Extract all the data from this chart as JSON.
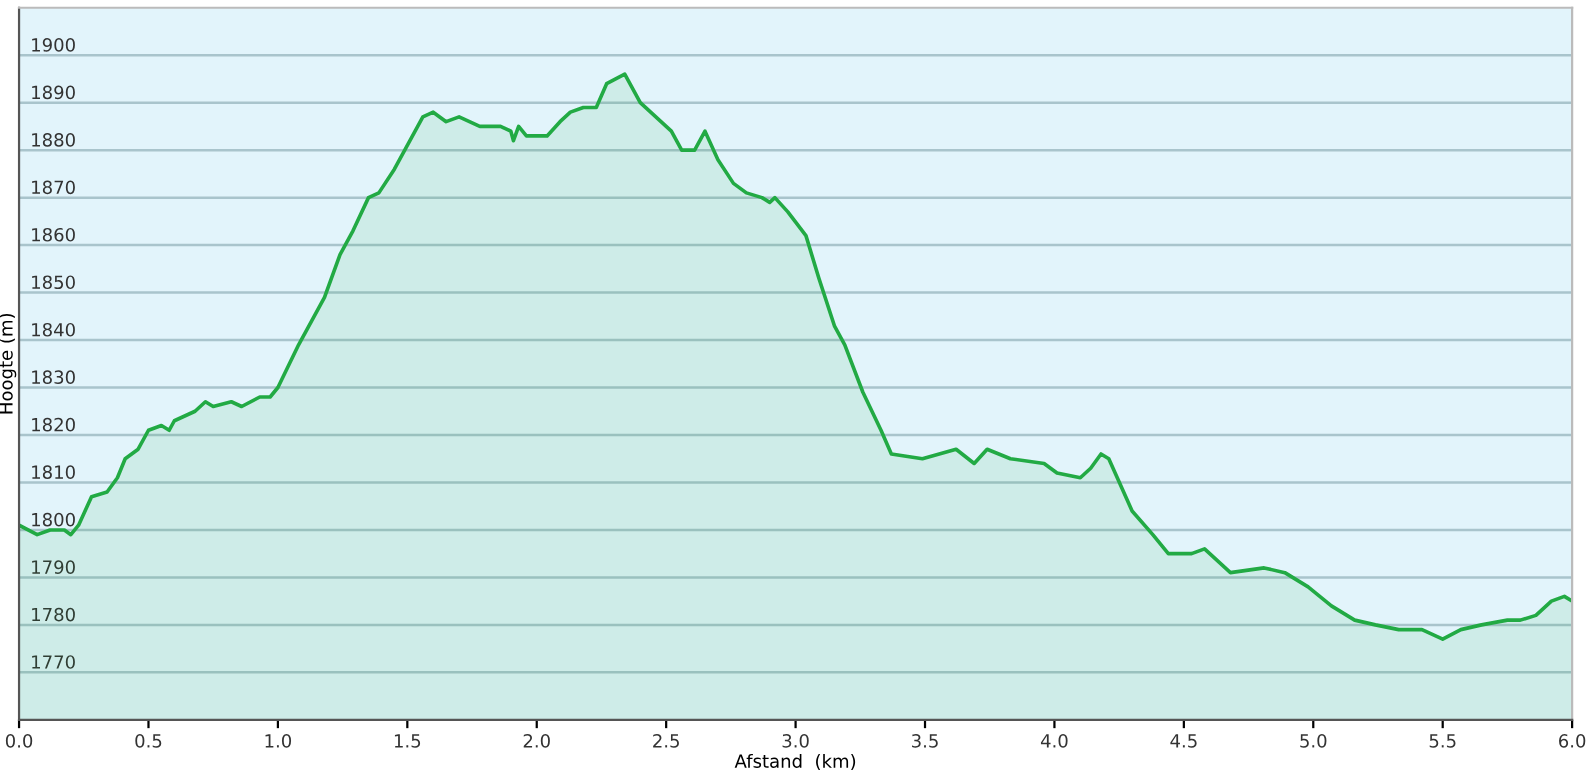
{
  "chart_data": {
    "type": "area",
    "xlabel": "Afstand  (km)",
    "ylabel": "Hoogte (m)",
    "xlim": [
      0,
      6.0
    ],
    "xticks": [
      {
        "value": 0,
        "label": "0.0"
      },
      0.5,
      {
        "value": 1,
        "label": "1.0"
      },
      1.5,
      {
        "value": 2,
        "label": "2.0"
      },
      2.5,
      {
        "value": 3,
        "label": "3.0"
      },
      3.5,
      {
        "value": 4,
        "label": "4.0"
      },
      4.5,
      {
        "value": 5,
        "label": "5.0"
      },
      5.5,
      {
        "value": 6,
        "label": "6.0"
      }
    ],
    "ylim": [
      1760,
      1910
    ],
    "yticks": [
      1770,
      1780,
      1790,
      1800,
      1810,
      1820,
      1830,
      1840,
      1850,
      1860,
      1870,
      1880,
      1890,
      1900
    ],
    "grid": "y",
    "legend": false,
    "series": [
      {
        "color": "#22aa44",
        "x": [
          0,
          0.07,
          0.12,
          0.175,
          0.2,
          0.23,
          0.28,
          0.34,
          0.38,
          0.41,
          0.46,
          0.5,
          0.55,
          0.58,
          0.6,
          0.68,
          0.72,
          0.75,
          0.82,
          0.86,
          0.93,
          0.97,
          1.0,
          1.08,
          1.13,
          1.18,
          1.24,
          1.29,
          1.35,
          1.39,
          1.45,
          1.5,
          1.56,
          1.6,
          1.65,
          1.7,
          1.78,
          1.86,
          1.9,
          1.91,
          1.93,
          1.96,
          2.04,
          2.09,
          2.13,
          2.18,
          2.23,
          2.27,
          2.34,
          2.36,
          2.4,
          2.48,
          2.52,
          2.56,
          2.61,
          2.65,
          2.7,
          2.76,
          2.81,
          2.87,
          2.9,
          2.92,
          2.97,
          3.04,
          3.09,
          3.15,
          3.19,
          3.26,
          3.33,
          3.37,
          3.49,
          3.62,
          3.69,
          3.74,
          3.83,
          3.96,
          4.01,
          4.1,
          4.14,
          4.18,
          4.21,
          4.3,
          4.38,
          4.44,
          4.53,
          4.58,
          4.68,
          4.81,
          4.89,
          4.98,
          5.07,
          5.16,
          5.24,
          5.33,
          5.42,
          5.5,
          5.57,
          5.65,
          5.75,
          5.8,
          5.86,
          5.92,
          5.97,
          6.0
        ],
        "values": [
          1801,
          1799,
          1800,
          1800,
          1799,
          1801,
          1807,
          1808,
          1811,
          1815,
          1817,
          1821,
          1822,
          1821,
          1823,
          1825,
          1827,
          1826,
          1827,
          1826,
          1828,
          1828,
          1830,
          1839,
          1844,
          1849,
          1858,
          1863,
          1870,
          1871,
          1876,
          1881,
          1887,
          1888,
          1886,
          1887,
          1885,
          1885,
          1884,
          1882,
          1885,
          1883,
          1883,
          1886,
          1888,
          1889,
          1889,
          1894,
          1896,
          1894,
          1890,
          1886,
          1884,
          1880,
          1880,
          1884,
          1878,
          1873,
          1871,
          1870,
          1869,
          1870,
          1867,
          1862,
          1853,
          1843,
          1839,
          1829,
          1821,
          1816,
          1815,
          1817,
          1814,
          1817,
          1815,
          1814,
          1812,
          1811,
          1813,
          1816,
          1815,
          1804,
          1799,
          1795,
          1795,
          1796,
          1791,
          1792,
          1791,
          1788,
          1784,
          1781,
          1780,
          1779,
          1779,
          1777,
          1779,
          1780,
          1781,
          1781,
          1782,
          1785,
          1786,
          1785
        ]
      }
    ]
  }
}
